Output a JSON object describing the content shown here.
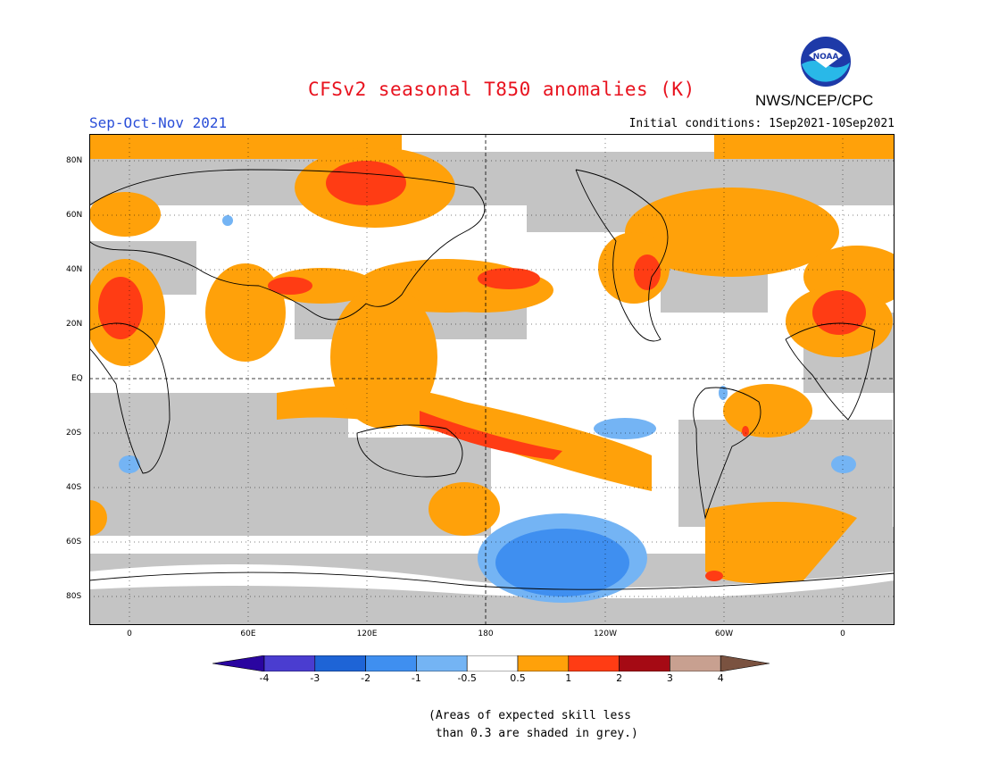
{
  "title": "CFSv2 seasonal T850 anomalies (K)",
  "season": "Sep-Oct-Nov 2021",
  "initial_conditions": "Initial conditions: 1Sep2021-10Sep2021",
  "agency": "NWS/NCEP/CPC",
  "logo_text": "NOAA",
  "lat_labels": [
    "80N",
    "60N",
    "40N",
    "20N",
    "EQ",
    "20S",
    "40S",
    "60S",
    "80S"
  ],
  "lon_labels": [
    "0",
    "60E",
    "120E",
    "180",
    "120W",
    "60W",
    "0"
  ],
  "colorbar": {
    "ticks": [
      "-4",
      "-3",
      "-2",
      "-1",
      "-0.5",
      "0.5",
      "1",
      "2",
      "3",
      "4"
    ],
    "colors": [
      "#2a05a0",
      "#4a3dd0",
      "#1e64d6",
      "#3f8ff0",
      "#74b4f4",
      "#ffffff",
      "#ffa10a",
      "#ff3c14",
      "#a50a14",
      "#c8a090",
      "#7a5240"
    ]
  },
  "note_line1": "(Areas of expected skill less",
  "note_line2": " than 0.3 are shaded in grey.)",
  "colors": {
    "title": "#e8121e",
    "season": "#2a4ed8",
    "grey_skill": "#c4c4c4",
    "orange": "#ffa10a",
    "red": "#ff3c14",
    "light_blue": "#74b4f4",
    "blue": "#3f8ff0"
  }
}
